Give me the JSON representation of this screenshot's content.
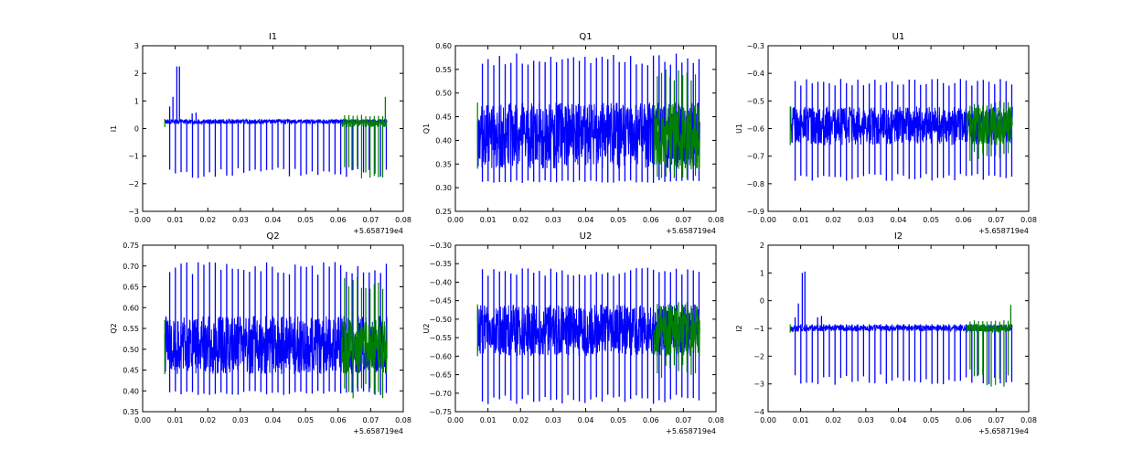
{
  "figure": {
    "background": "#ffffff"
  },
  "colors": {
    "primary": "#0000ff",
    "secondary": "#008000",
    "axes": "#000000"
  },
  "chart_data": [
    {
      "type": "line",
      "id": "I1",
      "title": "I1",
      "ylabel": "I1",
      "xlabel": "",
      "xlim": [
        0.0,
        0.08
      ],
      "ylim": [
        -3,
        3
      ],
      "xticks": [
        "0.00",
        "0.01",
        "0.02",
        "0.03",
        "0.04",
        "0.05",
        "0.06",
        "0.07",
        "0.08"
      ],
      "yticks": [
        "−3",
        "−2",
        "−1",
        "0",
        "1",
        "2",
        "3"
      ],
      "x_offset_label": "+5.658719e4",
      "x_range": [
        0.0068,
        0.075
      ],
      "series": [
        {
          "name": "blue",
          "color": "#0000ff",
          "base": 0.25,
          "band": [
            0.17,
            0.33
          ],
          "spike_lo": -1.8,
          "spike_hi": 0.33,
          "extra_spikes": [
            [
              0.0083,
              0.8
            ],
            [
              0.0093,
              1.15
            ],
            [
              0.0105,
              2.25
            ],
            [
              0.0113,
              2.25
            ],
            [
              0.0152,
              0.55
            ],
            [
              0.0164,
              0.58
            ]
          ]
        },
        {
          "name": "green",
          "color": "#008000",
          "base": 0.2,
          "band": [
            0.05,
            0.35
          ],
          "spike_lo": -1.9,
          "spike_hi": 0.5,
          "extra_spikes": [
            [
              0.0745,
              1.15
            ]
          ]
        }
      ]
    },
    {
      "type": "line",
      "id": "Q1",
      "title": "Q1",
      "ylabel": "Q1",
      "xlabel": "",
      "xlim": [
        0.0,
        0.08
      ],
      "ylim": [
        0.25,
        0.6
      ],
      "xticks": [
        "0.00",
        "0.01",
        "0.02",
        "0.03",
        "0.04",
        "0.05",
        "0.06",
        "0.07",
        "0.08"
      ],
      "yticks": [
        "0.25",
        "0.30",
        "0.35",
        "0.40",
        "0.45",
        "0.50",
        "0.55",
        "0.60"
      ],
      "x_offset_label": "+5.658719e4",
      "x_range": [
        0.0068,
        0.075
      ],
      "series": [
        {
          "name": "blue",
          "color": "#0000ff",
          "base": 0.41,
          "band": [
            0.34,
            0.48
          ],
          "spike_lo": 0.31,
          "spike_hi": 0.585,
          "extra_spikes": []
        },
        {
          "name": "green",
          "color": "#008000",
          "base": 0.41,
          "band": [
            0.34,
            0.48
          ],
          "spike_lo": 0.31,
          "spike_hi": 0.555,
          "extra_spikes": []
        }
      ]
    },
    {
      "type": "line",
      "id": "U1",
      "title": "U1",
      "ylabel": "U1",
      "xlabel": "",
      "xlim": [
        0.0,
        0.08
      ],
      "ylim": [
        -0.9,
        -0.3
      ],
      "xticks": [
        "0.00",
        "0.01",
        "0.02",
        "0.03",
        "0.04",
        "0.05",
        "0.06",
        "0.07",
        "0.08"
      ],
      "yticks": [
        "−0.9",
        "−0.8",
        "−0.7",
        "−0.6",
        "−0.5",
        "−0.4",
        "−0.3"
      ],
      "x_offset_label": "+5.658719e4",
      "x_range": [
        0.0068,
        0.075
      ],
      "series": [
        {
          "name": "blue",
          "color": "#0000ff",
          "base": -0.59,
          "band": [
            -0.66,
            -0.52
          ],
          "spike_lo": -0.79,
          "spike_hi": -0.42,
          "extra_spikes": []
        },
        {
          "name": "green",
          "color": "#008000",
          "base": -0.59,
          "band": [
            -0.66,
            -0.52
          ],
          "spike_lo": -0.72,
          "spike_hi": -0.5,
          "extra_spikes": []
        }
      ]
    },
    {
      "type": "line",
      "id": "Q2",
      "title": "Q2",
      "ylabel": "Q2",
      "xlabel": "",
      "xlim": [
        0.0,
        0.08
      ],
      "ylim": [
        0.35,
        0.75
      ],
      "xticks": [
        "0.00",
        "0.01",
        "0.02",
        "0.03",
        "0.04",
        "0.05",
        "0.06",
        "0.07",
        "0.08"
      ],
      "yticks": [
        "0.35",
        "0.40",
        "0.45",
        "0.50",
        "0.55",
        "0.60",
        "0.65",
        "0.70",
        "0.75"
      ],
      "x_offset_label": "+5.658719e4",
      "x_range": [
        0.0068,
        0.075
      ],
      "series": [
        {
          "name": "blue",
          "color": "#0000ff",
          "base": 0.51,
          "band": [
            0.44,
            0.58
          ],
          "spike_lo": 0.39,
          "spike_hi": 0.71,
          "extra_spikes": []
        },
        {
          "name": "green",
          "color": "#008000",
          "base": 0.5,
          "band": [
            0.44,
            0.57
          ],
          "spike_lo": 0.38,
          "spike_hi": 0.68,
          "extra_spikes": []
        }
      ]
    },
    {
      "type": "line",
      "id": "U2",
      "title": "U2",
      "ylabel": "U2",
      "xlabel": "",
      "xlim": [
        0.0,
        0.08
      ],
      "ylim": [
        -0.75,
        -0.3
      ],
      "xticks": [
        "0.00",
        "0.01",
        "0.02",
        "0.03",
        "0.04",
        "0.05",
        "0.06",
        "0.07",
        "0.08"
      ],
      "yticks": [
        "−0.75",
        "−0.70",
        "−0.65",
        "−0.60",
        "−0.55",
        "−0.50",
        "−0.45",
        "−0.40",
        "−0.35",
        "−0.30"
      ],
      "x_offset_label": "+5.658719e4",
      "x_range": [
        0.0068,
        0.075
      ],
      "series": [
        {
          "name": "blue",
          "color": "#0000ff",
          "base": -0.53,
          "band": [
            -0.6,
            -0.46
          ],
          "spike_lo": -0.73,
          "spike_hi": -0.36,
          "extra_spikes": []
        },
        {
          "name": "green",
          "color": "#008000",
          "base": -0.53,
          "band": [
            -0.6,
            -0.46
          ],
          "spike_lo": -0.66,
          "spike_hi": -0.45,
          "extra_spikes": []
        }
      ]
    },
    {
      "type": "line",
      "id": "I2",
      "title": "I2",
      "ylabel": "I2",
      "xlabel": "",
      "xlim": [
        0.0,
        0.08
      ],
      "ylim": [
        -4,
        2
      ],
      "xticks": [
        "0.00",
        "0.01",
        "0.02",
        "0.03",
        "0.04",
        "0.05",
        "0.06",
        "0.07",
        "0.08"
      ],
      "yticks": [
        "−4",
        "−3",
        "−2",
        "−1",
        "0",
        "1",
        "2"
      ],
      "x_offset_label": "+5.658719e4",
      "x_range": [
        0.0068,
        0.075
      ],
      "series": [
        {
          "name": "blue",
          "color": "#0000ff",
          "base": -0.98,
          "band": [
            -1.1,
            -0.88
          ],
          "spike_lo": -3.05,
          "spike_hi": -0.85,
          "extra_spikes": [
            [
              0.0083,
              -0.6
            ],
            [
              0.0093,
              -0.1
            ],
            [
              0.0105,
              1.0
            ],
            [
              0.0113,
              1.05
            ],
            [
              0.0152,
              -0.6
            ],
            [
              0.0164,
              -0.55
            ]
          ]
        },
        {
          "name": "green",
          "color": "#008000",
          "base": -1.0,
          "band": [
            -1.15,
            -0.85
          ],
          "spike_lo": -3.1,
          "spike_hi": -0.7,
          "extra_spikes": [
            [
              0.0745,
              -0.15
            ]
          ]
        }
      ]
    }
  ]
}
